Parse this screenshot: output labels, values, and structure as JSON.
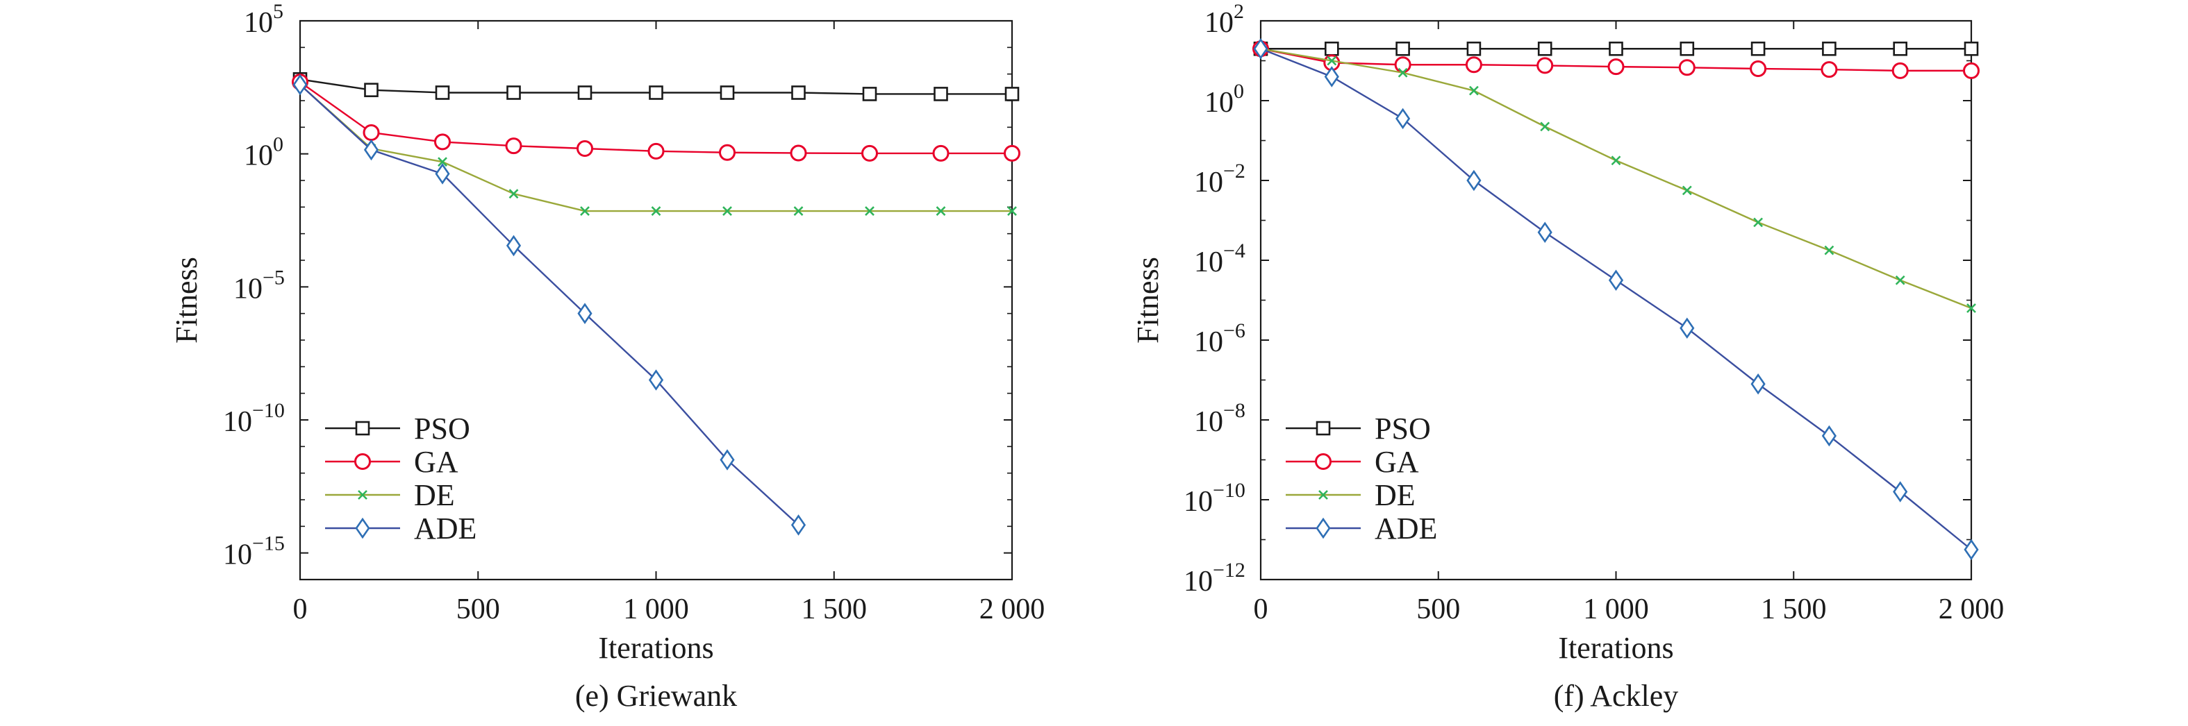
{
  "colors": {
    "PSO": "#1a1a1a",
    "GA": "#e8002a",
    "DE": "#9aa83a",
    "ADE": "#3b4fa0",
    "DE_marker": "#2fb45a",
    "ADE_marker": "#2e6fb5",
    "axis": "#1a1a1a"
  },
  "chart_data": [
    {
      "type": "line",
      "caption": "(e) Griewank",
      "xlabel": "Iterations",
      "ylabel": "Fitness",
      "xlim": [
        0,
        2000
      ],
      "ylim_exp": [
        -16,
        5
      ],
      "yscale": "log",
      "x_ticks": [
        0,
        500,
        1000,
        1500,
        2000
      ],
      "x_tick_labels": [
        "0",
        "500",
        "1 000",
        "1 500",
        "2 000"
      ],
      "y_ticks": [
        {
          "base": "10",
          "exp": "5",
          "value_exp": 5
        },
        {
          "base": "10",
          "exp": "0",
          "value_exp": 0
        },
        {
          "base": "10",
          "exp": "−5",
          "value_exp": -5
        },
        {
          "base": "10",
          "exp": "−10",
          "value_exp": -10
        },
        {
          "base": "10",
          "exp": "−15",
          "value_exp": -15
        }
      ],
      "legend_position": "bottom-left",
      "x": [
        0,
        200,
        400,
        600,
        800,
        1000,
        1200,
        1400,
        1600,
        1800,
        2000
      ],
      "series": [
        {
          "name": "PSO",
          "marker": "square",
          "log10_values": [
            2.8,
            2.4,
            2.3,
            2.3,
            2.3,
            2.3,
            2.3,
            2.3,
            2.25,
            2.25,
            2.25
          ]
        },
        {
          "name": "GA",
          "marker": "circle",
          "log10_values": [
            2.7,
            0.8,
            0.45,
            0.3,
            0.2,
            0.1,
            0.05,
            0.03,
            0.02,
            0.02,
            0.02
          ]
        },
        {
          "name": "DE",
          "marker": "x",
          "log10_values": [
            2.6,
            0.2,
            -0.3,
            -1.5,
            -2.15,
            -2.15,
            -2.15,
            -2.15,
            -2.15,
            -2.15,
            -2.15
          ]
        },
        {
          "name": "ADE",
          "marker": "diamond",
          "x": [
            0,
            200,
            400,
            600,
            800,
            1000,
            1200,
            1400
          ],
          "log10_values": [
            2.6,
            0.15,
            -0.75,
            -3.45,
            -6.0,
            -8.5,
            -11.5,
            -13.95
          ]
        }
      ]
    },
    {
      "type": "line",
      "caption": "(f) Ackley",
      "xlabel": "Iterations",
      "ylabel": "Fitness",
      "xlim": [
        0,
        2000
      ],
      "ylim_exp": [
        -12,
        2
      ],
      "yscale": "log",
      "x_ticks": [
        0,
        500,
        1000,
        1500,
        2000
      ],
      "x_tick_labels": [
        "0",
        "500",
        "1 000",
        "1 500",
        "2 000"
      ],
      "y_ticks": [
        {
          "base": "10",
          "exp": "2",
          "value_exp": 2
        },
        {
          "base": "10",
          "exp": "0",
          "value_exp": 0
        },
        {
          "base": "10",
          "exp": "−2",
          "value_exp": -2
        },
        {
          "base": "10",
          "exp": "−4",
          "value_exp": -4
        },
        {
          "base": "10",
          "exp": "−6",
          "value_exp": -6
        },
        {
          "base": "10",
          "exp": "−8",
          "value_exp": -8
        },
        {
          "base": "10",
          "exp": "−10",
          "value_exp": -10
        },
        {
          "base": "10",
          "exp": "−12",
          "value_exp": -12
        }
      ],
      "legend_position": "bottom-left",
      "x": [
        0,
        200,
        400,
        600,
        800,
        1000,
        1200,
        1400,
        1600,
        1800,
        2000
      ],
      "series": [
        {
          "name": "PSO",
          "marker": "square",
          "log10_values": [
            1.3,
            1.3,
            1.3,
            1.3,
            1.3,
            1.3,
            1.3,
            1.3,
            1.3,
            1.3,
            1.3
          ]
        },
        {
          "name": "GA",
          "marker": "circle",
          "log10_values": [
            1.3,
            0.95,
            0.9,
            0.9,
            0.88,
            0.85,
            0.83,
            0.8,
            0.78,
            0.75,
            0.75
          ]
        },
        {
          "name": "DE",
          "marker": "x",
          "log10_values": [
            1.3,
            1.0,
            0.7,
            0.25,
            -0.65,
            -1.5,
            -2.25,
            -3.05,
            -3.75,
            -4.5,
            -5.2
          ]
        },
        {
          "name": "ADE",
          "marker": "diamond",
          "log10_values": [
            1.3,
            0.6,
            -0.45,
            -2.0,
            -3.3,
            -4.5,
            -5.7,
            -7.1,
            -8.4,
            -9.8,
            -11.25
          ]
        }
      ]
    }
  ]
}
